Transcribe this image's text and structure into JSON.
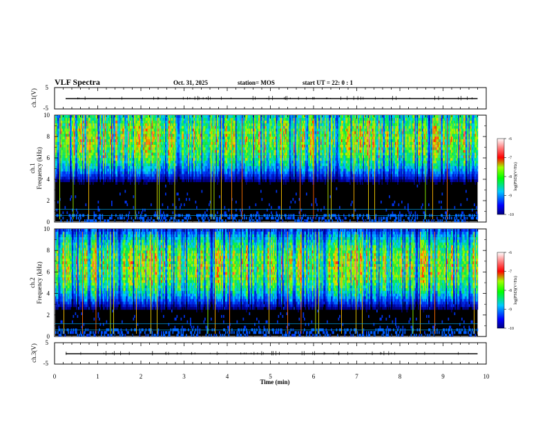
{
  "header": {
    "title": "VLF Spectra",
    "date": "Oct. 31, 2025",
    "station": "station= MOS",
    "start_ut": "start  UT  =   22: 0  : 1"
  },
  "chart_data": [
    {
      "type": "line",
      "name": "ch1-waveform",
      "ylabel": "ch.1(V)",
      "ylim": [
        -5,
        5
      ],
      "yticks": [
        "5",
        "-5"
      ],
      "baseline": -1
    },
    {
      "type": "heatmap",
      "name": "ch1-spectrogram",
      "ylabel_channel": "ch.1",
      "ylabel": "Frequency (kHz)",
      "ylim": [
        0,
        10
      ],
      "yticks": [
        "0",
        "2",
        "4",
        "6",
        "8",
        "10"
      ],
      "xlim": [
        0,
        10
      ],
      "data_end_min": 9.8,
      "colorbar": {
        "label": "log(PSD)(V²/Hz)",
        "range": [
          -10,
          -6
        ],
        "ticks": [
          "-6",
          "-7",
          "-8",
          "-9",
          "-10"
        ]
      }
    },
    {
      "type": "heatmap",
      "name": "ch2-spectrogram",
      "ylabel_channel": "ch.2",
      "ylabel": "Frequency (kHz)",
      "ylim": [
        0,
        10
      ],
      "yticks": [
        "0",
        "2",
        "4",
        "6",
        "8",
        "10"
      ],
      "xlim": [
        0,
        10
      ],
      "data_end_min": 9.8,
      "colorbar": {
        "label": "log(PSD)(V²/Hz)",
        "range": [
          -10,
          -6
        ],
        "ticks": [
          "-6",
          "-7",
          "-8",
          "-9",
          "-10"
        ]
      }
    },
    {
      "type": "line",
      "name": "ch3-waveform",
      "ylabel": "ch.3(V)",
      "ylim": [
        -5,
        5
      ],
      "yticks": [
        "5",
        "-5"
      ],
      "baseline": -1
    }
  ],
  "xaxis": {
    "label": "Time  (min)",
    "ticks": [
      "0",
      "1",
      "2",
      "3",
      "4",
      "5",
      "6",
      "7",
      "8",
      "9",
      "10"
    ]
  },
  "colors": {
    "spectrum_low": "#000000",
    "spectrum_high": "#ff0000",
    "axis": "#000000"
  }
}
